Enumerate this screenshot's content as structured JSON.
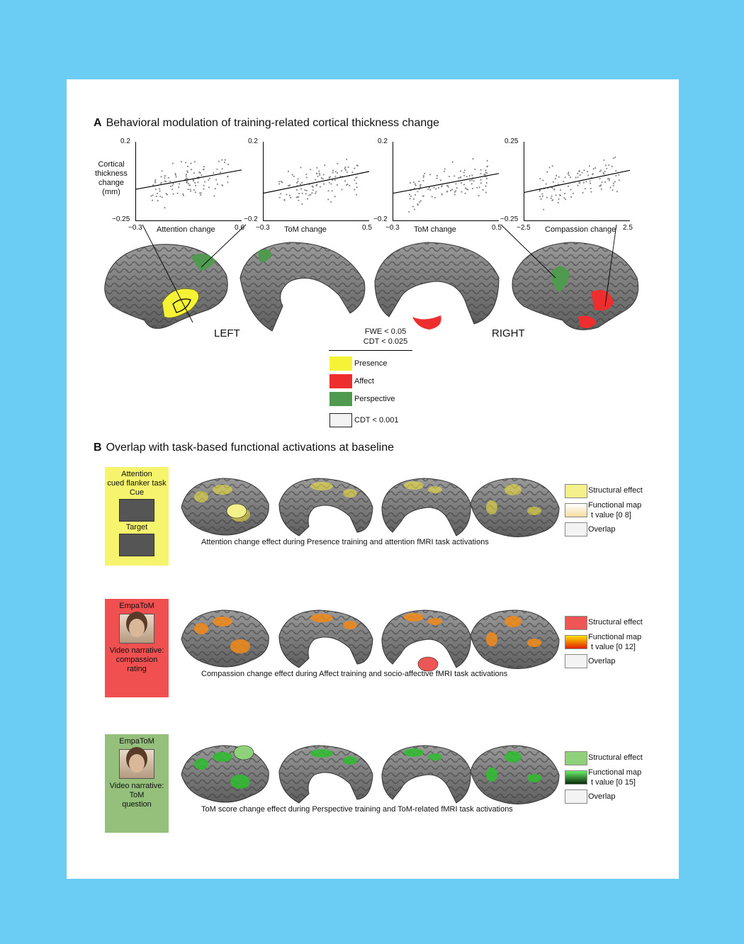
{
  "panel_a": {
    "title_letter": "A",
    "title": "Behavioral modulation of training-related cortical thickness change",
    "y_axis_label": [
      "Cortical",
      "thickness",
      "change",
      "(mm)"
    ],
    "hemisphere_left": "LEFT",
    "hemisphere_right": "RIGHT",
    "threshold_lines": [
      "FWE < 0.05",
      "CDT < 0.025"
    ],
    "legend": [
      {
        "label": "Presence",
        "color": "#f6f236"
      },
      {
        "label": "Affect",
        "color": "#ee2e2e"
      },
      {
        "label": "Perspective",
        "color": "#4f9a4f"
      },
      {
        "label": "CDT < 0.001",
        "color": "#f3f3f3"
      }
    ]
  },
  "chart_data": [
    {
      "type": "scatter",
      "xlabel": "Attention change",
      "ylabel": "Cortical thickness change (mm)",
      "xlim": [
        -0.3,
        0.6
      ],
      "ylim": [
        -0.25,
        0.2
      ],
      "xticks": [
        "−0.3",
        "0.6"
      ],
      "yticks": [
        "0.2",
        "−0.25"
      ],
      "fit_line": {
        "x": [
          -0.3,
          0.6
        ],
        "y": [
          -0.07,
          0.04
        ]
      }
    },
    {
      "type": "scatter",
      "xlabel": "ToM change",
      "ylabel": "",
      "xlim": [
        -0.3,
        0.5
      ],
      "ylim": [
        -0.2,
        0.2
      ],
      "xticks": [
        "−0.3",
        "0.5"
      ],
      "yticks": [
        "0.2",
        "−0.2"
      ],
      "fit_line": {
        "x": [
          -0.3,
          0.5
        ],
        "y": [
          -0.06,
          0.05
        ]
      }
    },
    {
      "type": "scatter",
      "xlabel": "ToM change",
      "ylabel": "",
      "xlim": [
        -0.3,
        0.5
      ],
      "ylim": [
        -0.2,
        0.2
      ],
      "xticks": [
        "−0.3",
        "0.5"
      ],
      "yticks": [
        "0.2",
        "−0.2"
      ],
      "fit_line": {
        "x": [
          -0.3,
          0.5
        ],
        "y": [
          -0.06,
          0.04
        ]
      }
    },
    {
      "type": "scatter",
      "xlabel": "Compassion change",
      "ylabel": "",
      "xlim": [
        -2.5,
        2.5
      ],
      "ylim": [
        -0.25,
        0.25
      ],
      "xticks": [
        "−2.5",
        "2.5"
      ],
      "yticks": [
        "0.25",
        "−0.25"
      ],
      "fit_line": {
        "x": [
          -2.5,
          2.5
        ],
        "y": [
          -0.07,
          0.07
        ]
      }
    }
  ],
  "panel_b": {
    "title_letter": "B",
    "title": "Overlap with task-based functional activations at baseline",
    "rows": [
      {
        "task_lines": [
          "Attention",
          "cued flanker task",
          "Cue"
        ],
        "task_lines2": [
          "Target"
        ],
        "box_color": "#f6f36c",
        "blob": "#f5e63a",
        "caption": "Attention change effect during Presence training and attention fMRI task activations",
        "legend": [
          "Structural effect",
          "Functional map",
          "t value [0 8]",
          "Overlap"
        ],
        "struct_color": "#f4f08a",
        "grad": [
          "#ffffff",
          "#f6dca0"
        ]
      },
      {
        "task_lines": [
          "EmpaToM"
        ],
        "task_lines2": [
          "Video narrative:",
          "compassion",
          "rating"
        ],
        "box_color": "#f05050",
        "blob": "#f28a1a",
        "caption": "Compassion change effect during Affect training and socio-affective fMRI task activations",
        "legend": [
          "Structural effect",
          "Functional map",
          "t value [0 12]",
          "Overlap"
        ],
        "struct_color": "#ee5555",
        "grad": [
          "#ffe000",
          "#e02000"
        ]
      },
      {
        "task_lines": [
          "EmpaToM"
        ],
        "task_lines2": [
          "Video narrative:",
          "ToM",
          "question"
        ],
        "box_color": "#95c07c",
        "blob": "#2fbd2f",
        "caption": "ToM score change effect during Perspective training and ToM-related fMRI task activations",
        "legend": [
          "Structural effect",
          "Functional map",
          "t value [0 15]",
          "Overlap"
        ],
        "struct_color": "#8fd07a",
        "grad": [
          "#6af06a",
          "#0a2a0a"
        ]
      }
    ]
  }
}
